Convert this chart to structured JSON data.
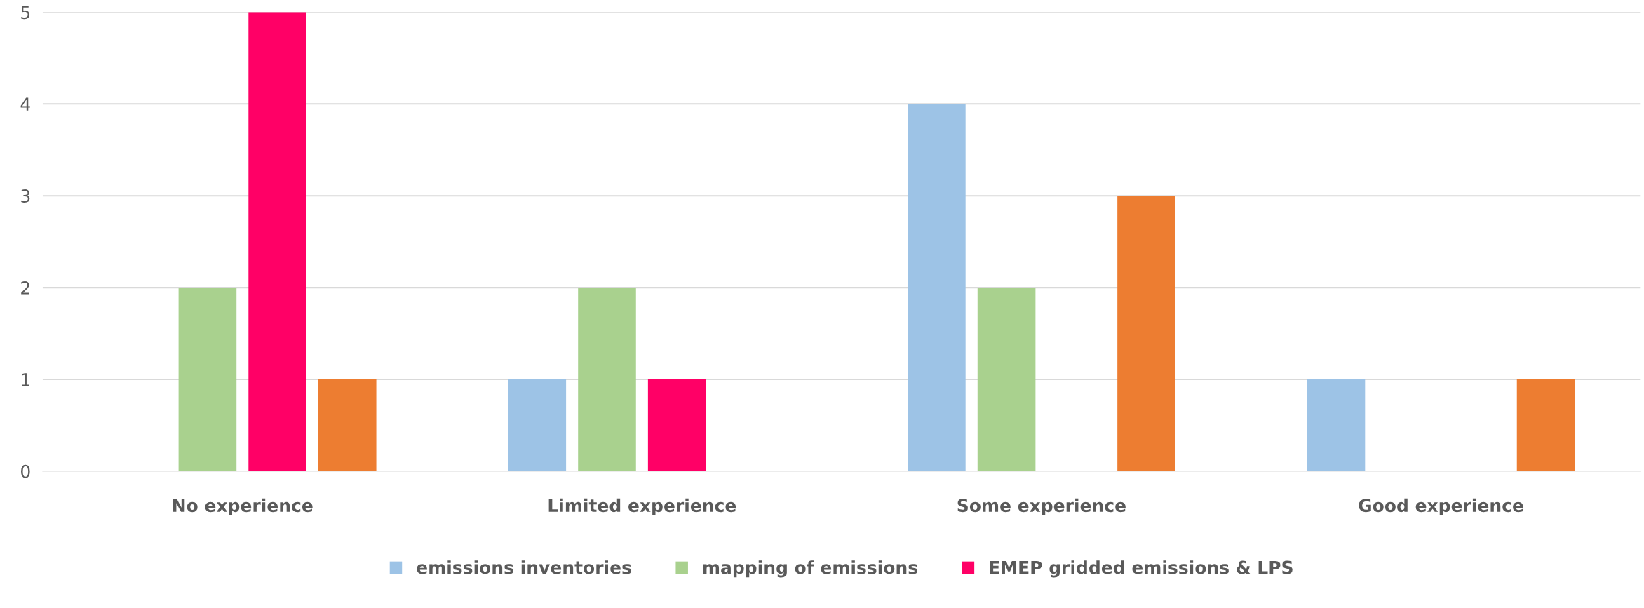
{
  "chart_data": {
    "type": "bar",
    "categories": [
      "No experience",
      "Limited experience",
      "Some experience",
      "Good experience"
    ],
    "series": [
      {
        "name": "emissions inventories",
        "color": "#9dc3e6",
        "values": [
          0,
          1,
          4,
          1
        ]
      },
      {
        "name": "mapping of emissions",
        "color": "#a9d18e",
        "values": [
          2,
          2,
          2,
          0
        ]
      },
      {
        "name": "EMEP gridded emissions & LPS",
        "color": "#ff0066",
        "values": [
          5,
          1,
          0,
          0
        ]
      },
      {
        "color": "#ed7d31",
        "values": [
          1,
          0,
          3,
          1
        ]
      }
    ],
    "ylim": [
      0,
      5
    ],
    "yticks": [
      0,
      1,
      2,
      3,
      4,
      5
    ],
    "grid": "y",
    "legend": "bottom"
  }
}
